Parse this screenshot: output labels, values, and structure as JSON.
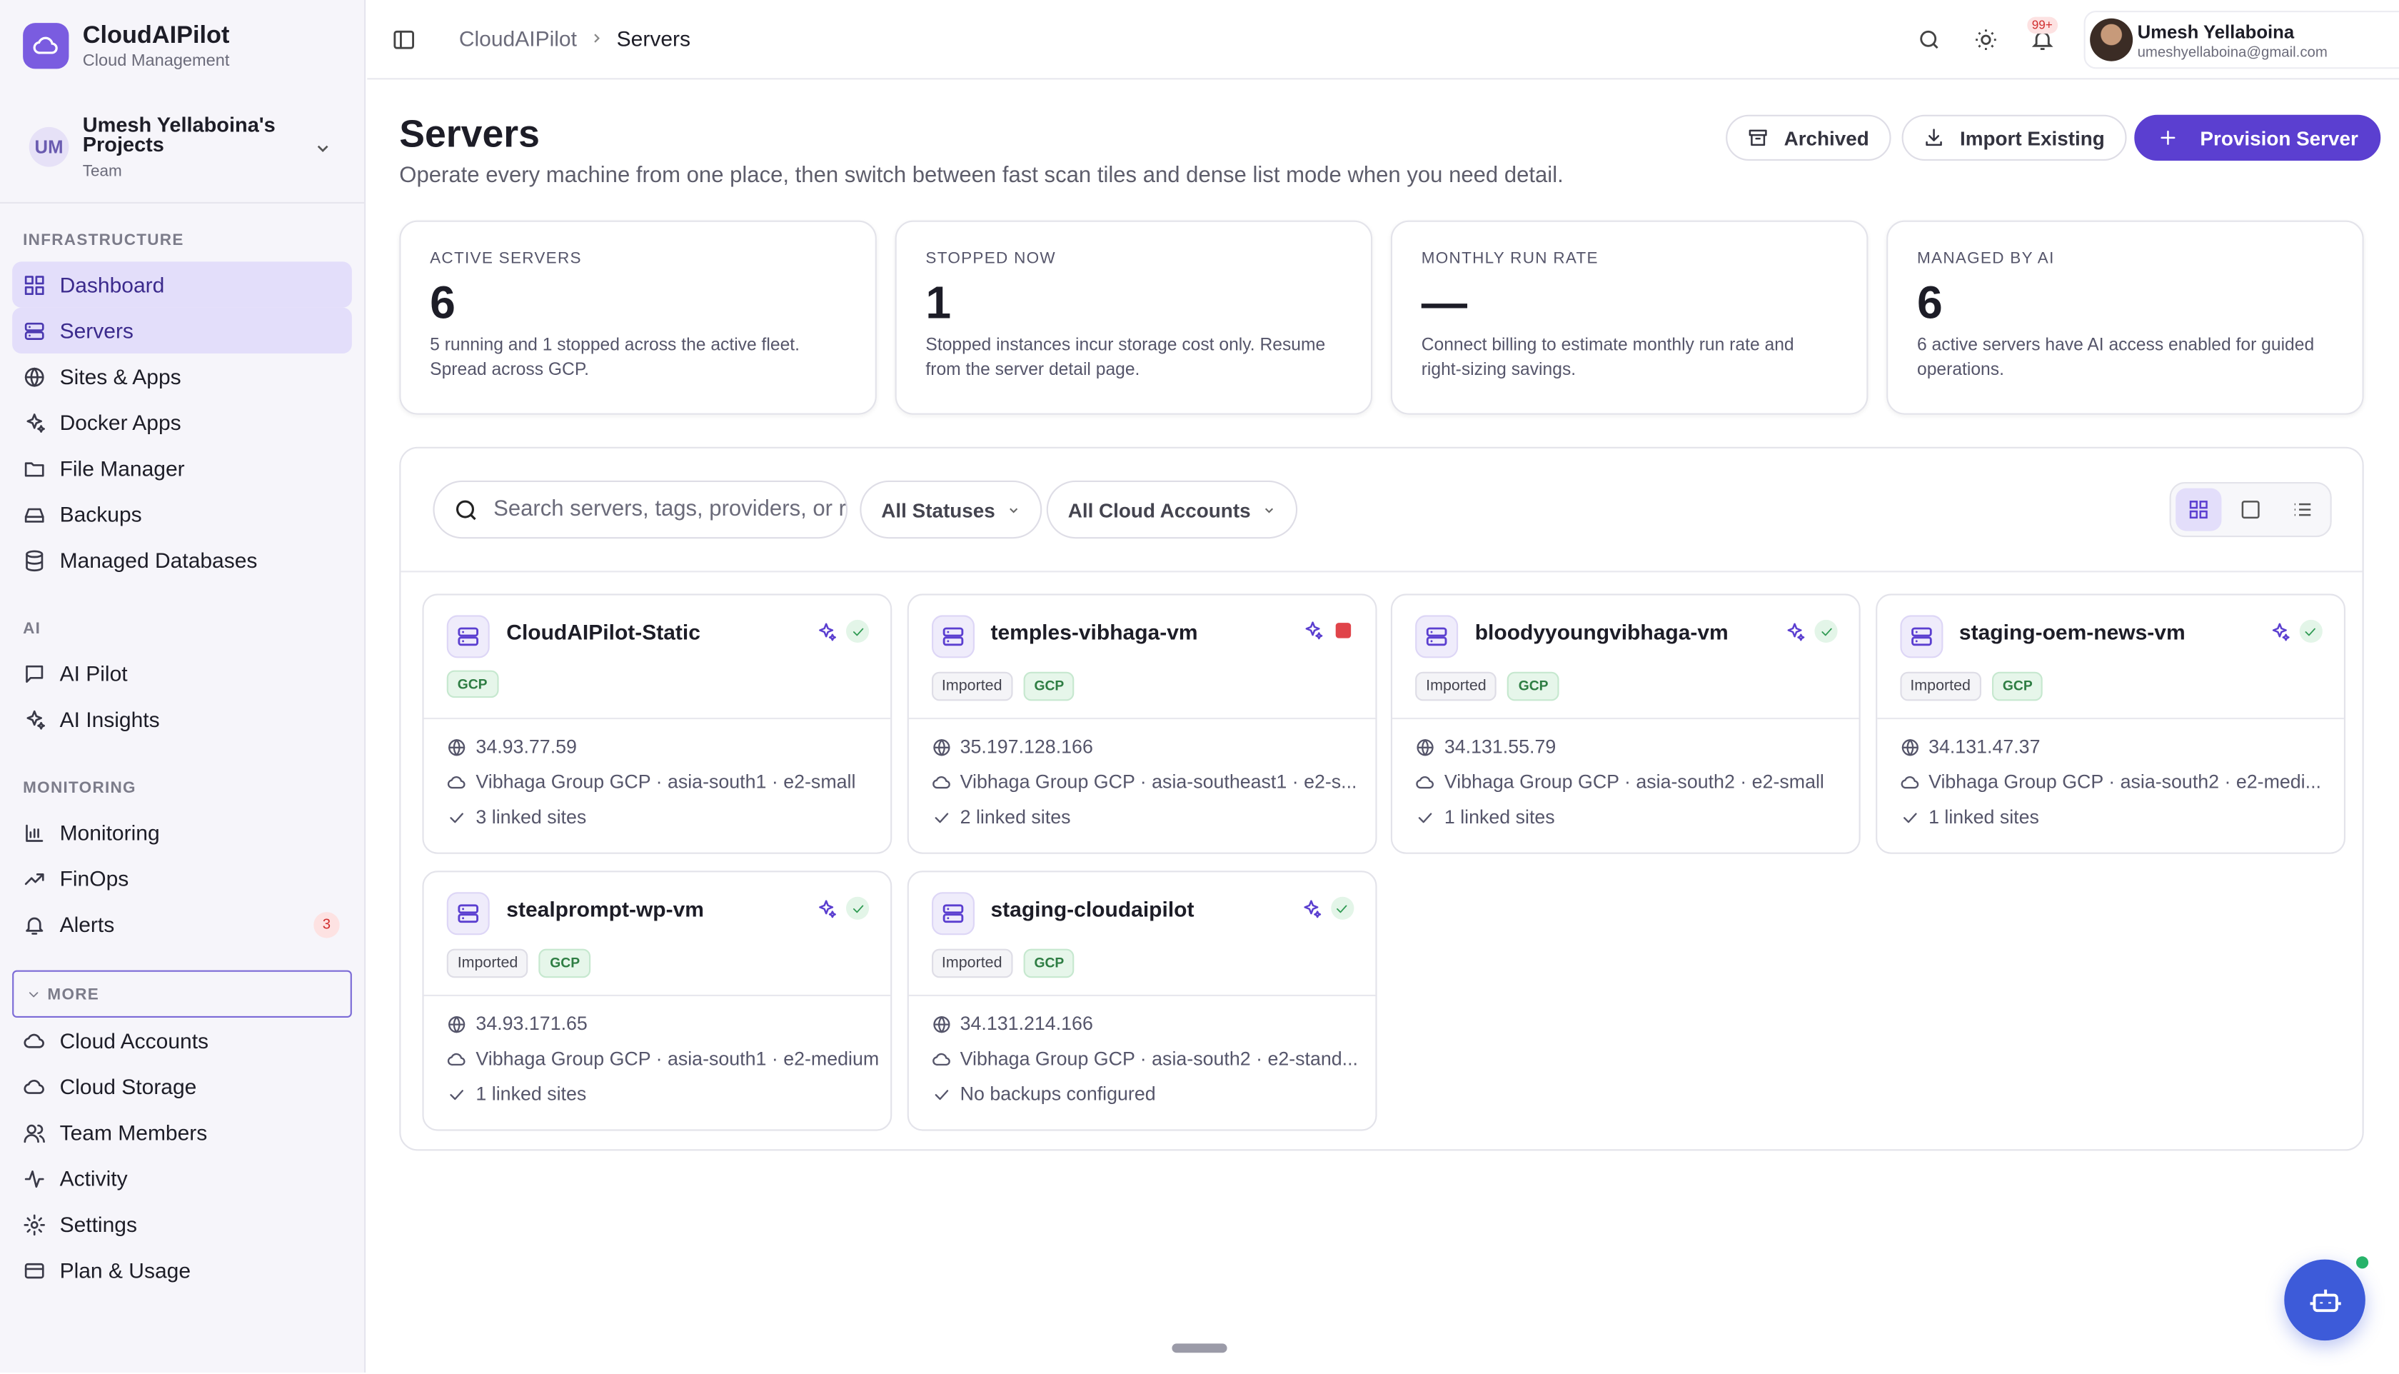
{
  "brand": {
    "name": "CloudAIPilot",
    "tagline": "Cloud Management"
  },
  "workspace": {
    "initials": "UM",
    "name": "Umesh Yellaboina's Projects",
    "role": "Team"
  },
  "nav": [
    {
      "heading": "INFRASTRUCTURE",
      "items": [
        {
          "label": "Dashboard",
          "active": true
        },
        {
          "label": "Servers",
          "active": true
        },
        {
          "label": "Sites & Apps"
        },
        {
          "label": "Docker Apps"
        },
        {
          "label": "File Manager"
        },
        {
          "label": "Backups"
        },
        {
          "label": "Managed Databases"
        }
      ]
    },
    {
      "heading": "AI",
      "items": [
        {
          "label": "AI Pilot"
        },
        {
          "label": "AI Insights"
        }
      ]
    },
    {
      "heading": "MONITORING",
      "items": [
        {
          "label": "Monitoring"
        },
        {
          "label": "FinOps"
        },
        {
          "label": "Alerts",
          "badge": 3
        }
      ]
    }
  ],
  "more": {
    "label": "MORE",
    "items": [
      "Cloud Accounts",
      "Cloud Storage",
      "Team Members",
      "Activity",
      "Settings",
      "Plan & Usage"
    ]
  },
  "breadcrumb": [
    "CloudAIPilot",
    "Servers"
  ],
  "notifications_badge": "99+",
  "user": {
    "name": "Umesh Yellaboina",
    "email": "umeshyellaboina@gmail.com"
  },
  "page": {
    "title": "Servers",
    "subtitle": "Operate every machine from one place, then switch between fast scan tiles and dense list mode when you need detail."
  },
  "actions": [
    "Archived",
    "Import Existing",
    "Provision Server"
  ],
  "stats": [
    {
      "label": "ACTIVE SERVERS",
      "value": 6,
      "desc": "5 running and 1 stopped across the active fleet. Spread across GCP."
    },
    {
      "label": "STOPPED NOW",
      "value": 1,
      "desc": "Stopped instances incur storage cost only. Resume from the server detail page."
    },
    {
      "label": "MONTHLY RUN RATE",
      "value": "—",
      "desc": "Connect billing to estimate monthly run rate and right-sizing savings."
    },
    {
      "label": "MANAGED BY AI",
      "value": 6,
      "desc": "6 active servers have AI access enabled for guided operations."
    }
  ],
  "filters": {
    "search_placeholder": "Search servers, tags, providers, or r",
    "status": "All Statuses",
    "accounts": "All Cloud Accounts"
  },
  "servers": [
    {
      "name": "CloudAIPilot-Static",
      "tags": [
        "GCP"
      ],
      "status": "running",
      "ip": "34.93.77.59",
      "location": "Vibhaga Group GCP · asia-south1 · e2-small",
      "detail": "3 linked sites"
    },
    {
      "name": "temples-vibhaga-vm",
      "tags": [
        "Imported",
        "GCP"
      ],
      "status": "stopped",
      "ip": "35.197.128.166",
      "location": "Vibhaga Group GCP · asia-southeast1 · e2-s...",
      "detail": "2 linked sites"
    },
    {
      "name": "bloodyyoungvibhaga-vm",
      "tags": [
        "Imported",
        "GCP"
      ],
      "status": "running",
      "ip": "34.131.55.79",
      "location": "Vibhaga Group GCP · asia-south2 · e2-small",
      "detail": "1 linked sites"
    },
    {
      "name": "staging-oem-news-vm",
      "tags": [
        "Imported",
        "GCP"
      ],
      "status": "running",
      "ip": "34.131.47.37",
      "location": "Vibhaga Group GCP · asia-south2 · e2-medi...",
      "detail": "1 linked sites"
    },
    {
      "name": "stealprompt-wp-vm",
      "tags": [
        "Imported",
        "GCP"
      ],
      "status": "running",
      "ip": "34.93.171.65",
      "location": "Vibhaga Group GCP · asia-south1 · e2-medium",
      "detail": "1 linked sites"
    },
    {
      "name": "staging-cloudaipilot",
      "tags": [
        "Imported",
        "GCP"
      ],
      "status": "running",
      "ip": "34.131.214.166",
      "location": "Vibhaga Group GCP · asia-south2 · e2-stand...",
      "detail": "No backups configured"
    }
  ]
}
